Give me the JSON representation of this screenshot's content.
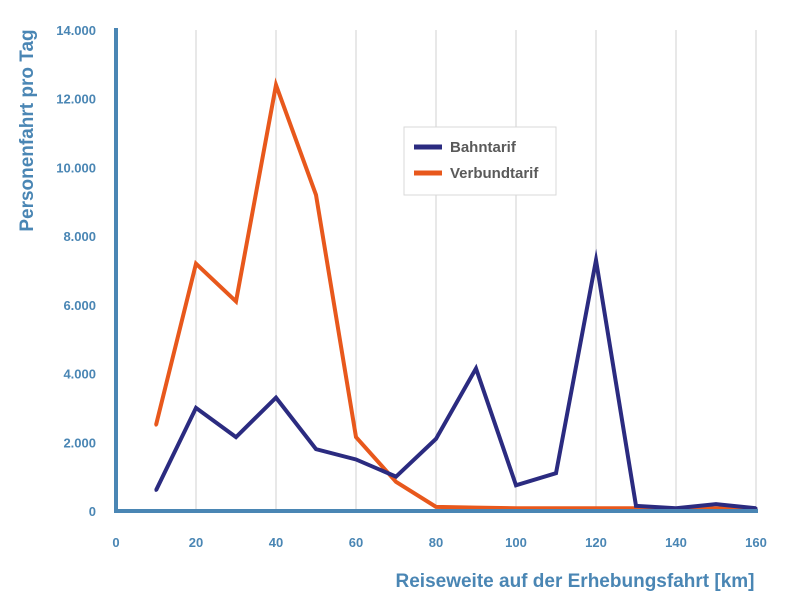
{
  "chart_data": {
    "type": "line",
    "title": "",
    "xlabel": "Reiseweite auf der Erhebungsfahrt [km]",
    "ylabel": "Personenfahrt pro Tag",
    "xlim": [
      0,
      160
    ],
    "ylim": [
      0,
      14000
    ],
    "x_ticks": [
      0,
      20,
      40,
      60,
      80,
      100,
      120,
      140,
      160
    ],
    "x_tick_labels": [
      "0",
      "20",
      "40",
      "60",
      "80",
      "100",
      "120",
      "140",
      "160"
    ],
    "y_ticks": [
      0,
      2000,
      4000,
      6000,
      8000,
      10000,
      12000,
      14000
    ],
    "y_tick_labels": [
      "0",
      "2.000",
      "4.000",
      "6.000",
      "8.000",
      "10.000",
      "12.000",
      "14.000"
    ],
    "grid": "vertical",
    "legend_position": "center",
    "x": [
      10,
      20,
      30,
      40,
      50,
      60,
      70,
      80,
      90,
      100,
      110,
      120,
      130,
      140,
      150,
      160
    ],
    "series": [
      {
        "name": "Bahntarif",
        "color": "#2b2b80",
        "values": [
          600,
          3000,
          2150,
          3300,
          1800,
          1500,
          1000,
          2100,
          4150,
          750,
          1100,
          7300,
          150,
          80,
          200,
          80
        ]
      },
      {
        "name": "Verbundtarif",
        "color": "#e8581c",
        "values": [
          2500,
          7200,
          6100,
          12400,
          9200,
          2150,
          850,
          120,
          100,
          80,
          80,
          80,
          80,
          50,
          80,
          50
        ]
      }
    ],
    "colors": {
      "axis": "#4a86b4",
      "grid": "#d0d0d0"
    }
  }
}
